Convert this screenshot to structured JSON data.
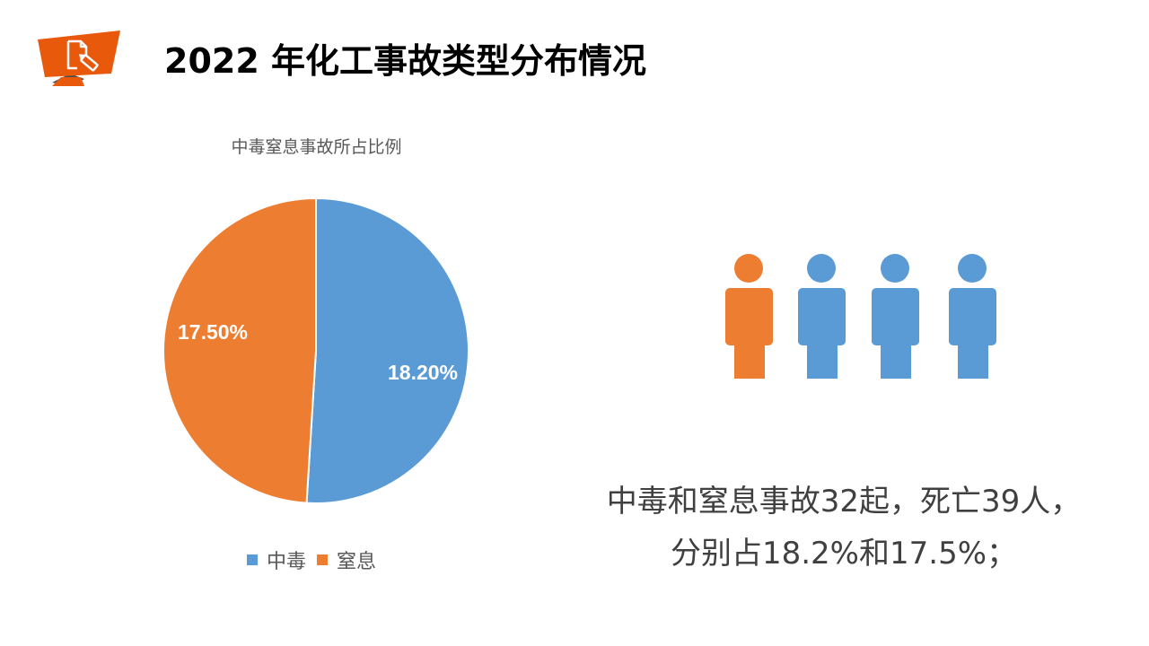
{
  "header": {
    "title": "2022 年化工事故类型分布情况",
    "badge_icon": "document-pen-icon",
    "badge_color": "#E8590C"
  },
  "colors": {
    "poisoning": "#5B9BD5",
    "suffocation": "#ED7D31"
  },
  "chart_data": {
    "type": "pie",
    "title": "中毒窒息事故所占比例",
    "categories": [
      "中毒",
      "窒息"
    ],
    "values": [
      18.2,
      17.5
    ],
    "data_labels": [
      "18.20%",
      "17.50%"
    ],
    "colors": [
      "#5B9BD5",
      "#ED7D31"
    ],
    "legend_position": "bottom",
    "start_angle": 0,
    "direction": "clockwise"
  },
  "legend": {
    "items": [
      {
        "label": "中毒",
        "color": "#5B9BD5"
      },
      {
        "label": "窒息",
        "color": "#ED7D31"
      }
    ]
  },
  "people": {
    "icon": "person-icon",
    "figures": [
      {
        "color": "#ED7D31"
      },
      {
        "color": "#5B9BD5"
      },
      {
        "color": "#5B9BD5"
      },
      {
        "color": "#5B9BD5"
      }
    ]
  },
  "summary": {
    "line1": "中毒和窒息事故32起，死亡39人，",
    "line2": "分别占18.2%和17.5%；"
  }
}
